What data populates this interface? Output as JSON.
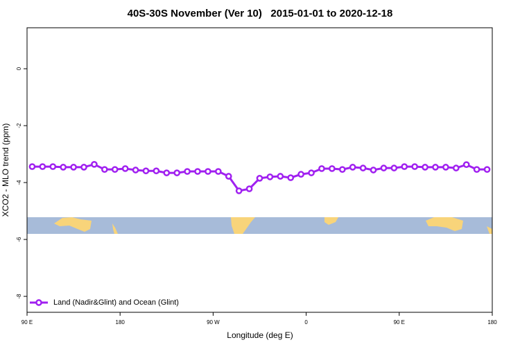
{
  "chart_data": {
    "type": "line",
    "title": "40S-30S November (Ver 10)   2015-01-01 to 2020-12-18",
    "x_label": "Longitude (deg E)",
    "y_label": "XCO2 - MLO trend (ppm)",
    "x": [
      95,
      105,
      115,
      125,
      135,
      145,
      155,
      165,
      175,
      185,
      195,
      205,
      215,
      225,
      235,
      245,
      255,
      265,
      275,
      285,
      295,
      305,
      315,
      325,
      335,
      345,
      355,
      365,
      375,
      385,
      395,
      405,
      415,
      425,
      435,
      445,
      455,
      465,
      475,
      485,
      495,
      505,
      515,
      525,
      535
    ],
    "series": [
      {
        "name": "Land (Nadir&Glint) and Ocean (Glint)",
        "color": "#a020f0",
        "values": [
          -3.44,
          -3.44,
          -3.44,
          -3.46,
          -3.46,
          -3.46,
          -3.36,
          -3.54,
          -3.54,
          -3.51,
          -3.56,
          -3.59,
          -3.59,
          -3.66,
          -3.66,
          -3.61,
          -3.61,
          -3.61,
          -3.61,
          -3.78,
          -4.29,
          -4.22,
          -3.85,
          -3.8,
          -3.78,
          -3.83,
          -3.71,
          -3.66,
          -3.51,
          -3.51,
          -3.54,
          -3.46,
          -3.49,
          -3.56,
          -3.49,
          -3.49,
          -3.44,
          -3.44,
          -3.46,
          -3.46,
          -3.46,
          -3.49,
          -3.37,
          -3.54,
          -3.54
        ]
      }
    ],
    "xlim": [
      90,
      540
    ],
    "xticks": [
      {
        "value": 90,
        "label": "90 E"
      },
      180,
      {
        "value": 270,
        "label": "90 W"
      },
      {
        "value": 360,
        "label": "0"
      },
      {
        "value": 450,
        "label": "90 E"
      },
      {
        "value": 540,
        "label": "180"
      }
    ],
    "ylim": [
      -8.56,
      1.44
    ],
    "yticks": [
      0,
      -2,
      -4,
      -6,
      -8
    ],
    "legend": "bottom-left"
  }
}
